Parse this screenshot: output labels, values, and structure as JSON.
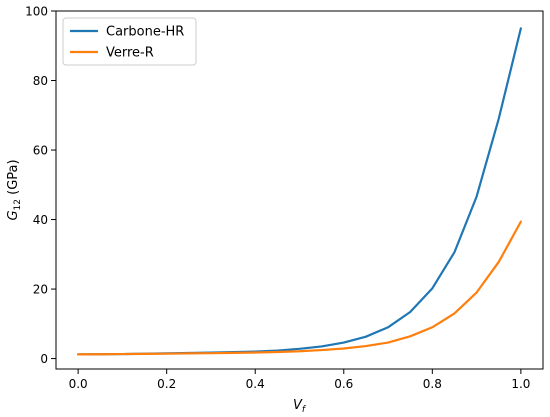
{
  "chart_data": {
    "type": "line",
    "xlabel": "V",
    "xlabel_sub": "f",
    "ylabel": "G",
    "ylabel_sub": "12",
    "ylabel_unit": " (GPa)",
    "xlim": [
      -0.05,
      1.05
    ],
    "ylim": [
      -3,
      100
    ],
    "xticks": [
      0.0,
      0.2,
      0.4,
      0.6,
      0.8,
      1.0
    ],
    "xtick_labels": [
      "0.0",
      "0.2",
      "0.4",
      "0.6",
      "0.8",
      "1.0"
    ],
    "yticks": [
      0,
      20,
      40,
      60,
      80,
      100
    ],
    "ytick_labels": [
      "0",
      "20",
      "40",
      "60",
      "80",
      "100"
    ],
    "grid": false,
    "legend_position": "top-left",
    "x": [
      0.0,
      0.05,
      0.1,
      0.15,
      0.2,
      0.25,
      0.3,
      0.35,
      0.4,
      0.45,
      0.5,
      0.55,
      0.6,
      0.65,
      0.7,
      0.75,
      0.8,
      0.85,
      0.9,
      0.95,
      1.0
    ],
    "series": [
      {
        "name": "Carbone-HR",
        "color": "#1f77b4",
        "values": [
          1.2,
          1.25,
          1.3,
          1.4,
          1.5,
          1.6,
          1.7,
          1.85,
          2.0,
          2.3,
          2.8,
          3.5,
          4.6,
          6.3,
          9.0,
          13.4,
          20.2,
          30.6,
          46.6,
          69.0,
          95.0
        ]
      },
      {
        "name": "Verre-R",
        "color": "#ff7f0e",
        "values": [
          1.2,
          1.25,
          1.3,
          1.35,
          1.4,
          1.5,
          1.55,
          1.65,
          1.75,
          1.9,
          2.1,
          2.45,
          2.9,
          3.6,
          4.6,
          6.4,
          9.0,
          13.0,
          19.0,
          27.8,
          39.4
        ]
      }
    ]
  }
}
